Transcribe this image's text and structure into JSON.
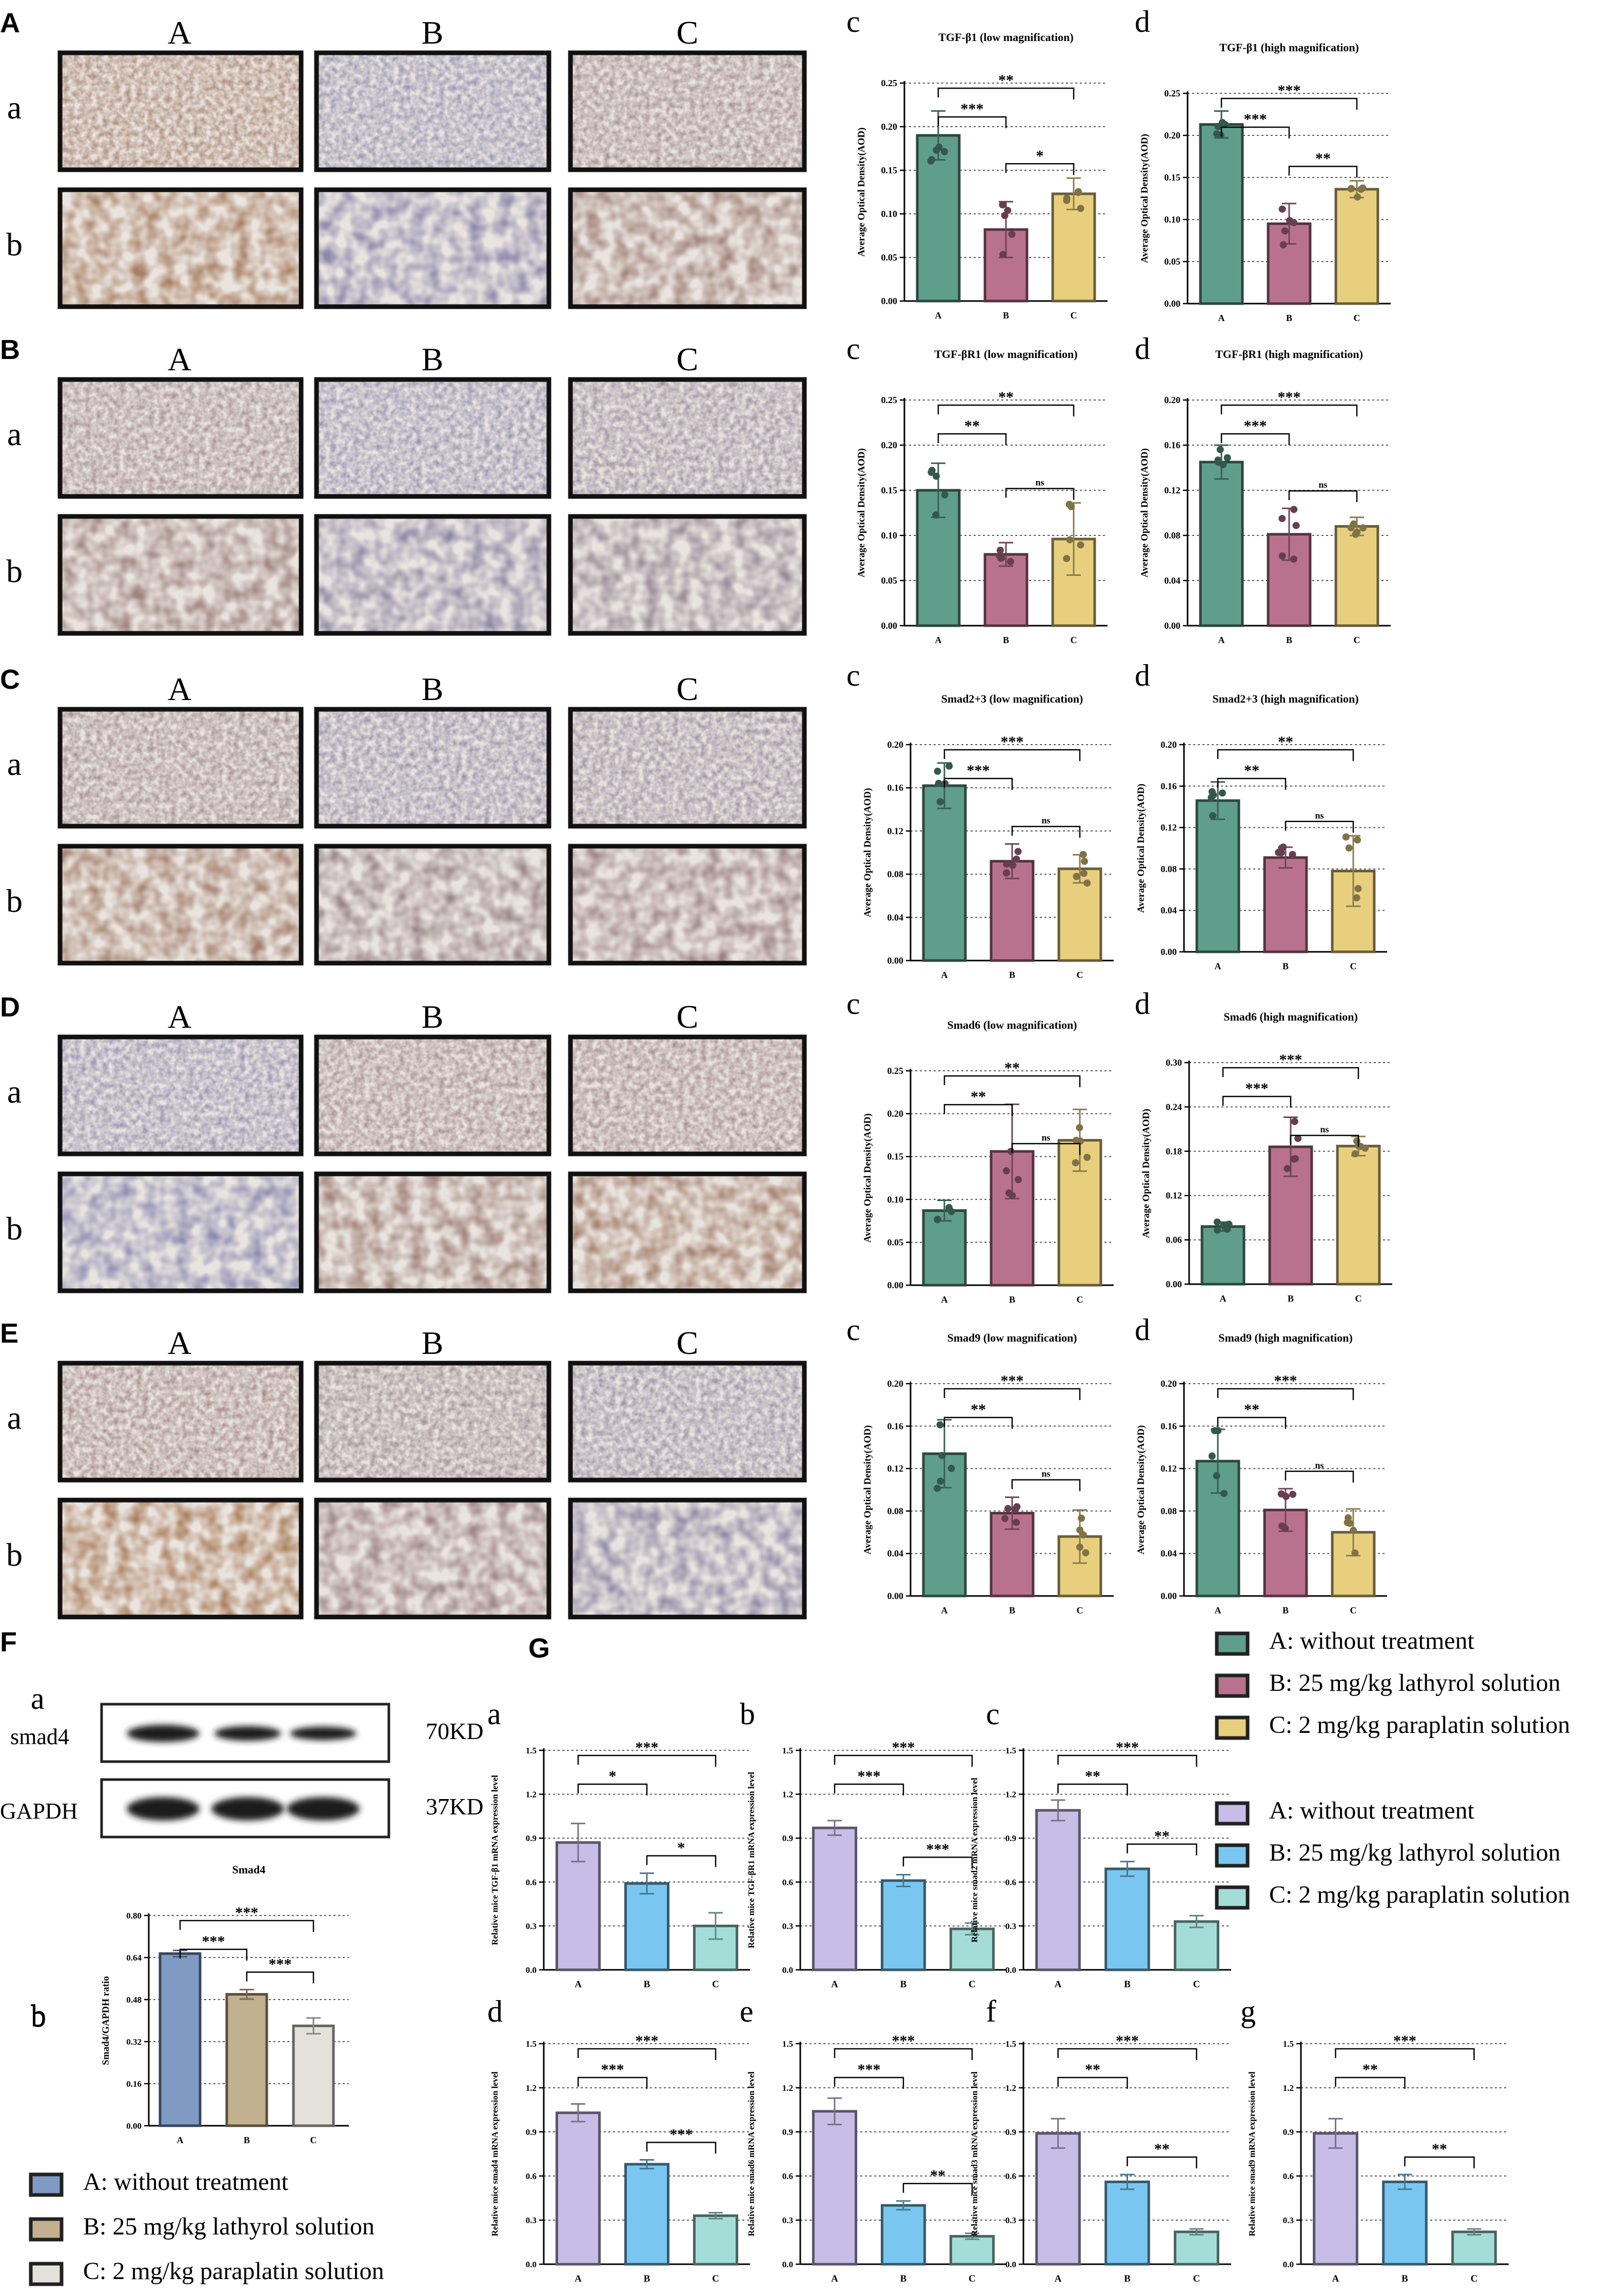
{
  "colors": {
    "a_green": "#5f9e8a",
    "b_pink": "#b9728e",
    "c_yellow": "#e8cf7e",
    "f_blue": "#7f9bc4",
    "f_tan": "#c2b08e",
    "f_light": "#e4e1da",
    "g_purple": "#c7bde6",
    "g_blue": "#79c7f0",
    "g_teal": "#a4ddd8",
    "stain_brown": "#b07a4a",
    "stain_blue": "#7f86b8"
  },
  "ihc_rows": [
    {
      "panel": "A",
      "cols": [
        "A",
        "B",
        "C"
      ],
      "rows": [
        "a",
        "b"
      ]
    },
    {
      "panel": "B",
      "cols": [
        "A",
        "B",
        "C"
      ],
      "rows": [
        "a",
        "b"
      ]
    },
    {
      "panel": "C",
      "cols": [
        "A",
        "B",
        "C"
      ],
      "rows": [
        "a",
        "b"
      ]
    },
    {
      "panel": "D",
      "cols": [
        "A",
        "B",
        "C"
      ],
      "rows": [
        "a",
        "b"
      ]
    },
    {
      "panel": "E",
      "cols": [
        "A",
        "B",
        "C"
      ],
      "rows": [
        "a",
        "b"
      ]
    }
  ],
  "legend_aod": [
    "A: without treatment",
    "B: 25 mg/kg lathyrol solution",
    "C: 2 mg/kg paraplatin solution"
  ],
  "legend_g": [
    "A: without treatment",
    "B: 25 mg/kg lathyrol solution",
    "C: 2 mg/kg paraplatin solution"
  ],
  "legend_f": [
    "A: without treatment",
    "B: 25 mg/kg lathyrol solution",
    "C: 2 mg/kg paraplatin solution"
  ],
  "panel_f": {
    "letter": "F",
    "sub_a": "a",
    "sub_b": "b",
    "blot": [
      {
        "label": "smad4",
        "size": "70KD"
      },
      {
        "label": "GAPDH",
        "size": "37KD"
      }
    ]
  },
  "panel_g_letter": "G",
  "chart_data": [
    {
      "id": "A-c",
      "letter": "c",
      "type": "bar",
      "title": "TGF-β1 (low magnification)",
      "ylabel": "Average Optical Density(AOD)",
      "categories": [
        "A",
        "B",
        "C"
      ],
      "values": [
        0.19,
        0.082,
        0.123
      ],
      "errors": [
        0.028,
        0.032,
        0.018
      ],
      "ylim": [
        0,
        0.25
      ],
      "yticks": [
        "0.00",
        "0.05",
        "0.10",
        "0.15",
        "0.20",
        "0.25"
      ],
      "sig": [
        {
          "a": 0,
          "b": 1,
          "label": "***"
        },
        {
          "a": 0,
          "b": 2,
          "label": "**"
        },
        {
          "a": 1,
          "b": 2,
          "label": "*"
        }
      ]
    },
    {
      "id": "A-d",
      "letter": "d",
      "type": "bar",
      "title": "TGF-β1 (high magnification)",
      "ylabel": "Average Optical Density(AOD)",
      "categories": [
        "A",
        "B",
        "C"
      ],
      "values": [
        0.213,
        0.095,
        0.136
      ],
      "errors": [
        0.016,
        0.024,
        0.01
      ],
      "ylim": [
        0,
        0.25
      ],
      "yticks": [
        "0.00",
        "0.05",
        "0.10",
        "0.15",
        "0.20",
        "0.25"
      ],
      "sig": [
        {
          "a": 0,
          "b": 1,
          "label": "***"
        },
        {
          "a": 0,
          "b": 2,
          "label": "***"
        },
        {
          "a": 1,
          "b": 2,
          "label": "**"
        }
      ]
    },
    {
      "id": "B-c",
      "letter": "c",
      "type": "bar",
      "title": "TGF-βR1 (low magnification)",
      "ylabel": "Average Optical Density(AOD)",
      "categories": [
        "A",
        "B",
        "C"
      ],
      "values": [
        0.15,
        0.079,
        0.096
      ],
      "errors": [
        0.03,
        0.013,
        0.04
      ],
      "ylim": [
        0,
        0.25
      ],
      "yticks": [
        "0.00",
        "0.05",
        "0.10",
        "0.15",
        "0.20",
        "0.25"
      ],
      "sig": [
        {
          "a": 0,
          "b": 1,
          "label": "**"
        },
        {
          "a": 0,
          "b": 2,
          "label": "**"
        },
        {
          "a": 1,
          "b": 2,
          "label": "ns"
        }
      ]
    },
    {
      "id": "B-d",
      "letter": "d",
      "type": "bar",
      "title": "TGF-βR1 (high magnification)",
      "ylabel": "Average Optical Density(AOD)",
      "categories": [
        "A",
        "B",
        "C"
      ],
      "values": [
        0.145,
        0.081,
        0.088
      ],
      "errors": [
        0.015,
        0.023,
        0.008
      ],
      "ylim": [
        0,
        0.2
      ],
      "yticks": [
        "0.00",
        "0.04",
        "0.08",
        "0.12",
        "0.16",
        "0.20"
      ],
      "sig": [
        {
          "a": 0,
          "b": 1,
          "label": "***"
        },
        {
          "a": 0,
          "b": 2,
          "label": "***"
        },
        {
          "a": 1,
          "b": 2,
          "label": "ns"
        }
      ]
    },
    {
      "id": "C-c",
      "letter": "c",
      "type": "bar",
      "title": "Smad2+3  (low magnification)",
      "ylabel": "Average Optical Density(AOD)",
      "categories": [
        "A",
        "B",
        "C"
      ],
      "values": [
        0.162,
        0.092,
        0.085
      ],
      "errors": [
        0.021,
        0.016,
        0.013
      ],
      "ylim": [
        0,
        0.2
      ],
      "yticks": [
        "0.00",
        "0.04",
        "0.08",
        "0.12",
        "0.16",
        "0.20"
      ],
      "sig": [
        {
          "a": 0,
          "b": 1,
          "label": "***"
        },
        {
          "a": 0,
          "b": 2,
          "label": "***"
        },
        {
          "a": 1,
          "b": 2,
          "label": "ns"
        }
      ]
    },
    {
      "id": "C-d",
      "letter": "d",
      "type": "bar",
      "title": "Smad2+3  (high magnification)",
      "ylabel": "Average Optical Density(AOD)",
      "categories": [
        "A",
        "B",
        "C"
      ],
      "values": [
        0.146,
        0.091,
        0.078
      ],
      "errors": [
        0.018,
        0.01,
        0.034
      ],
      "ylim": [
        0,
        0.2
      ],
      "yticks": [
        "0.00",
        "0.04",
        "0.08",
        "0.12",
        "0.16",
        "0.20"
      ],
      "sig": [
        {
          "a": 0,
          "b": 1,
          "label": "**"
        },
        {
          "a": 0,
          "b": 2,
          "label": "**"
        },
        {
          "a": 1,
          "b": 2,
          "label": "ns"
        }
      ]
    },
    {
      "id": "D-c",
      "letter": "c",
      "type": "bar",
      "title": "Smad6 (low magnification)",
      "ylabel": "Average Optical Density(AOD)",
      "categories": [
        "A",
        "B",
        "C"
      ],
      "values": [
        0.087,
        0.156,
        0.169
      ],
      "errors": [
        0.012,
        0.055,
        0.036
      ],
      "ylim": [
        0,
        0.25
      ],
      "yticks": [
        "0.00",
        "0.05",
        "0.10",
        "0.15",
        "0.20",
        "0.25"
      ],
      "sig": [
        {
          "a": 0,
          "b": 1,
          "label": "**"
        },
        {
          "a": 0,
          "b": 2,
          "label": "**"
        },
        {
          "a": 1,
          "b": 2,
          "label": "ns"
        }
      ]
    },
    {
      "id": "D-d",
      "letter": "d",
      "type": "bar",
      "title": "Smad6 (high magnification)",
      "ylabel": "Average Optical Density(AOD)",
      "categories": [
        "A",
        "B",
        "C"
      ],
      "values": [
        0.078,
        0.186,
        0.187
      ],
      "errors": [
        0.006,
        0.04,
        0.013
      ],
      "ylim": [
        0,
        0.3
      ],
      "yticks": [
        "0.00",
        "0.06",
        "0.12",
        "0.18",
        "0.24",
        "0.30"
      ],
      "sig": [
        {
          "a": 0,
          "b": 1,
          "label": "***"
        },
        {
          "a": 0,
          "b": 2,
          "label": "***"
        },
        {
          "a": 1,
          "b": 2,
          "label": "ns"
        }
      ]
    },
    {
      "id": "E-c",
      "letter": "c",
      "type": "bar",
      "title": "Smad9 (low magnification)",
      "ylabel": "Average Optical Density(AOD)",
      "categories": [
        "A",
        "B",
        "C"
      ],
      "values": [
        0.134,
        0.078,
        0.056
      ],
      "errors": [
        0.032,
        0.015,
        0.025
      ],
      "ylim": [
        0,
        0.2
      ],
      "yticks": [
        "0.00",
        "0.04",
        "0.08",
        "0.12",
        "0.16",
        "0.20"
      ],
      "sig": [
        {
          "a": 0,
          "b": 1,
          "label": "**"
        },
        {
          "a": 0,
          "b": 2,
          "label": "***"
        },
        {
          "a": 1,
          "b": 2,
          "label": "ns"
        }
      ]
    },
    {
      "id": "E-d",
      "letter": "d",
      "type": "bar",
      "title": "Smad9 (high magnification)",
      "ylabel": "Average Optical Density(AOD)",
      "categories": [
        "A",
        "B",
        "C"
      ],
      "values": [
        0.127,
        0.081,
        0.06
      ],
      "errors": [
        0.03,
        0.02,
        0.022
      ],
      "ylim": [
        0,
        0.2
      ],
      "yticks": [
        "0.00",
        "0.04",
        "0.08",
        "0.12",
        "0.16",
        "0.20"
      ],
      "sig": [
        {
          "a": 0,
          "b": 1,
          "label": "**"
        },
        {
          "a": 0,
          "b": 2,
          "label": "***"
        },
        {
          "a": 1,
          "b": 2,
          "label": "ns"
        }
      ]
    },
    {
      "id": "F-b",
      "letter": "b",
      "type": "bar",
      "title": "Smad4",
      "ylabel": "Smad4/GAPDH ratio",
      "categories": [
        "A",
        "B",
        "C"
      ],
      "values": [
        0.655,
        0.5,
        0.38
      ],
      "errors": [
        0.012,
        0.018,
        0.03
      ],
      "ylim": [
        0,
        0.8
      ],
      "yticks": [
        "0.00",
        "0.16",
        "0.32",
        "0.48",
        "0.64",
        "0.80"
      ],
      "sig": [
        {
          "a": 0,
          "b": 1,
          "label": "***"
        },
        {
          "a": 0,
          "b": 2,
          "label": "***"
        },
        {
          "a": 1,
          "b": 2,
          "label": "***"
        }
      ]
    },
    {
      "id": "G-a",
      "letter": "a",
      "type": "bar",
      "title": "",
      "ylabel": "Relative mice TGF-β1 mRNA expression level",
      "categories": [
        "A",
        "B",
        "C"
      ],
      "values": [
        0.87,
        0.59,
        0.3
      ],
      "errors": [
        0.13,
        0.07,
        0.09
      ],
      "ylim": [
        0,
        1.5
      ],
      "yticks": [
        "0.0",
        "0.3",
        "0.6",
        "0.9",
        "1.2",
        "1.5"
      ],
      "sig": [
        {
          "a": 0,
          "b": 1,
          "label": "*"
        },
        {
          "a": 0,
          "b": 2,
          "label": "***"
        },
        {
          "a": 1,
          "b": 2,
          "label": "*"
        }
      ]
    },
    {
      "id": "G-b",
      "letter": "b",
      "type": "bar",
      "title": "",
      "ylabel": "Relative mice TGF-βR1 mRNA expression level",
      "categories": [
        "A",
        "B",
        "C"
      ],
      "values": [
        0.97,
        0.61,
        0.28
      ],
      "errors": [
        0.05,
        0.04,
        0.04
      ],
      "ylim": [
        0,
        1.5
      ],
      "yticks": [
        "0.0",
        "0.3",
        "0.6",
        "0.9",
        "1.2",
        "1.5"
      ],
      "sig": [
        {
          "a": 0,
          "b": 1,
          "label": "***"
        },
        {
          "a": 0,
          "b": 2,
          "label": "***"
        },
        {
          "a": 1,
          "b": 2,
          "label": "***"
        }
      ]
    },
    {
      "id": "G-c",
      "letter": "c",
      "type": "bar",
      "title": "",
      "ylabel": "Relative mice smad2 mRNA expression level",
      "categories": [
        "A",
        "B",
        "C"
      ],
      "values": [
        1.09,
        0.69,
        0.33
      ],
      "errors": [
        0.07,
        0.05,
        0.04
      ],
      "ylim": [
        0,
        1.5
      ],
      "yticks": [
        "0.0",
        "0.3",
        "0.6",
        "0.9",
        "1.2",
        "1.5"
      ],
      "sig": [
        {
          "a": 0,
          "b": 1,
          "label": "**"
        },
        {
          "a": 0,
          "b": 2,
          "label": "***"
        },
        {
          "a": 1,
          "b": 2,
          "label": "**"
        }
      ]
    },
    {
      "id": "G-d",
      "letter": "d",
      "type": "bar",
      "title": "",
      "ylabel": "Relative mice smad4 mRNA expression level",
      "categories": [
        "A",
        "B",
        "C"
      ],
      "values": [
        1.03,
        0.68,
        0.33
      ],
      "errors": [
        0.06,
        0.03,
        0.02
      ],
      "ylim": [
        0,
        1.5
      ],
      "yticks": [
        "0.0",
        "0.3",
        "0.6",
        "0.9",
        "1.2",
        "1.5"
      ],
      "sig": [
        {
          "a": 0,
          "b": 1,
          "label": "***"
        },
        {
          "a": 0,
          "b": 2,
          "label": "***"
        },
        {
          "a": 1,
          "b": 2,
          "label": "***"
        }
      ]
    },
    {
      "id": "G-e",
      "letter": "e",
      "type": "bar",
      "title": "",
      "ylabel": "Relative mice smad6 mRNA expression level",
      "categories": [
        "A",
        "B",
        "C"
      ],
      "values": [
        1.04,
        0.4,
        0.19
      ],
      "errors": [
        0.09,
        0.03,
        0.02
      ],
      "ylim": [
        0,
        1.5
      ],
      "yticks": [
        "0.0",
        "0.3",
        "0.6",
        "0.9",
        "1.2",
        "1.5"
      ],
      "sig": [
        {
          "a": 0,
          "b": 1,
          "label": "***"
        },
        {
          "a": 0,
          "b": 2,
          "label": "***"
        },
        {
          "a": 1,
          "b": 2,
          "label": "**"
        }
      ]
    },
    {
      "id": "G-f",
      "letter": "f",
      "type": "bar",
      "title": "",
      "ylabel": "Relative mice smad3 mRNA expression level",
      "categories": [
        "A",
        "B",
        "C"
      ],
      "values": [
        0.89,
        0.56,
        0.22
      ],
      "errors": [
        0.1,
        0.05,
        0.02
      ],
      "ylim": [
        0,
        1.5
      ],
      "yticks": [
        "0.0",
        "0.3",
        "0.6",
        "0.9",
        "1.2",
        "1.5"
      ],
      "sig": [
        {
          "a": 0,
          "b": 1,
          "label": "**"
        },
        {
          "a": 0,
          "b": 2,
          "label": "***"
        },
        {
          "a": 1,
          "b": 2,
          "label": "**"
        }
      ]
    },
    {
      "id": "G-g",
      "letter": "g",
      "type": "bar",
      "title": "",
      "ylabel": "Relative mice smad9 mRNA expression level",
      "categories": [
        "A",
        "B",
        "C"
      ],
      "values": [
        0.89,
        0.56,
        0.22
      ],
      "errors": [
        0.1,
        0.05,
        0.02
      ],
      "ylim": [
        0,
        1.5
      ],
      "yticks": [
        "0.0",
        "0.3",
        "0.6",
        "0.9",
        "1.2",
        "1.5"
      ],
      "sig": [
        {
          "a": 0,
          "b": 1,
          "label": "**"
        },
        {
          "a": 0,
          "b": 2,
          "label": "***"
        },
        {
          "a": 1,
          "b": 2,
          "label": "**"
        }
      ]
    }
  ]
}
